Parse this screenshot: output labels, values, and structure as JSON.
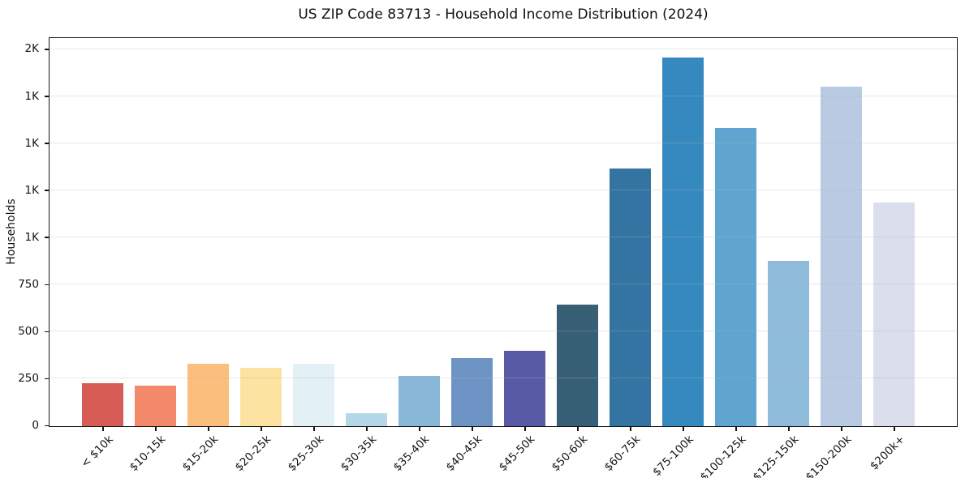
{
  "chart_data": {
    "type": "bar",
    "title": "US ZIP Code 83713 - Household Income Distribution (2024)",
    "xlabel": "",
    "ylabel": "Households",
    "categories": [
      "< $10k",
      "$10-15k",
      "$15-20k",
      "$20-25k",
      "$25-30k",
      "$30-35k",
      "$35-40k",
      "$40-45k",
      "$45-50k",
      "$50-60k",
      "$60-75k",
      "$75-100k",
      "$100-125k",
      "$125-150k",
      "$150-200k",
      "$200k+"
    ],
    "values": [
      230,
      215,
      333,
      310,
      333,
      68,
      265,
      360,
      402,
      648,
      1370,
      1960,
      1585,
      880,
      1805,
      1190
    ],
    "bar_colors": [
      "#d65c55",
      "#f3886b",
      "#fcbe7d",
      "#fde3a1",
      "#e3f0f6",
      "#b6d7e8",
      "#89b7d7",
      "#6e94c6",
      "#585aa6",
      "#375f76",
      "#3374a2",
      "#3689bf",
      "#5fa5cf",
      "#8fbbdb",
      "#b9cbe3",
      "#dbdeed"
    ],
    "ylim": [
      0,
      2058
    ],
    "yticks": [
      {
        "value": 0,
        "label": "0"
      },
      {
        "value": 250,
        "label": "250"
      },
      {
        "value": 500,
        "label": "500"
      },
      {
        "value": 750,
        "label": "750"
      },
      {
        "value": 1000,
        "label": "1K"
      },
      {
        "value": 1250,
        "label": "1K"
      },
      {
        "value": 1500,
        "label": "1K"
      },
      {
        "value": 1750,
        "label": "1K"
      },
      {
        "value": 2000,
        "label": "2K"
      }
    ],
    "grid": "horizontal-light",
    "legend": "none"
  },
  "colors": {
    "background": "#ffffff",
    "spine": "#151515",
    "grid_on_white": "#e7e7e7",
    "text": "#141414"
  }
}
